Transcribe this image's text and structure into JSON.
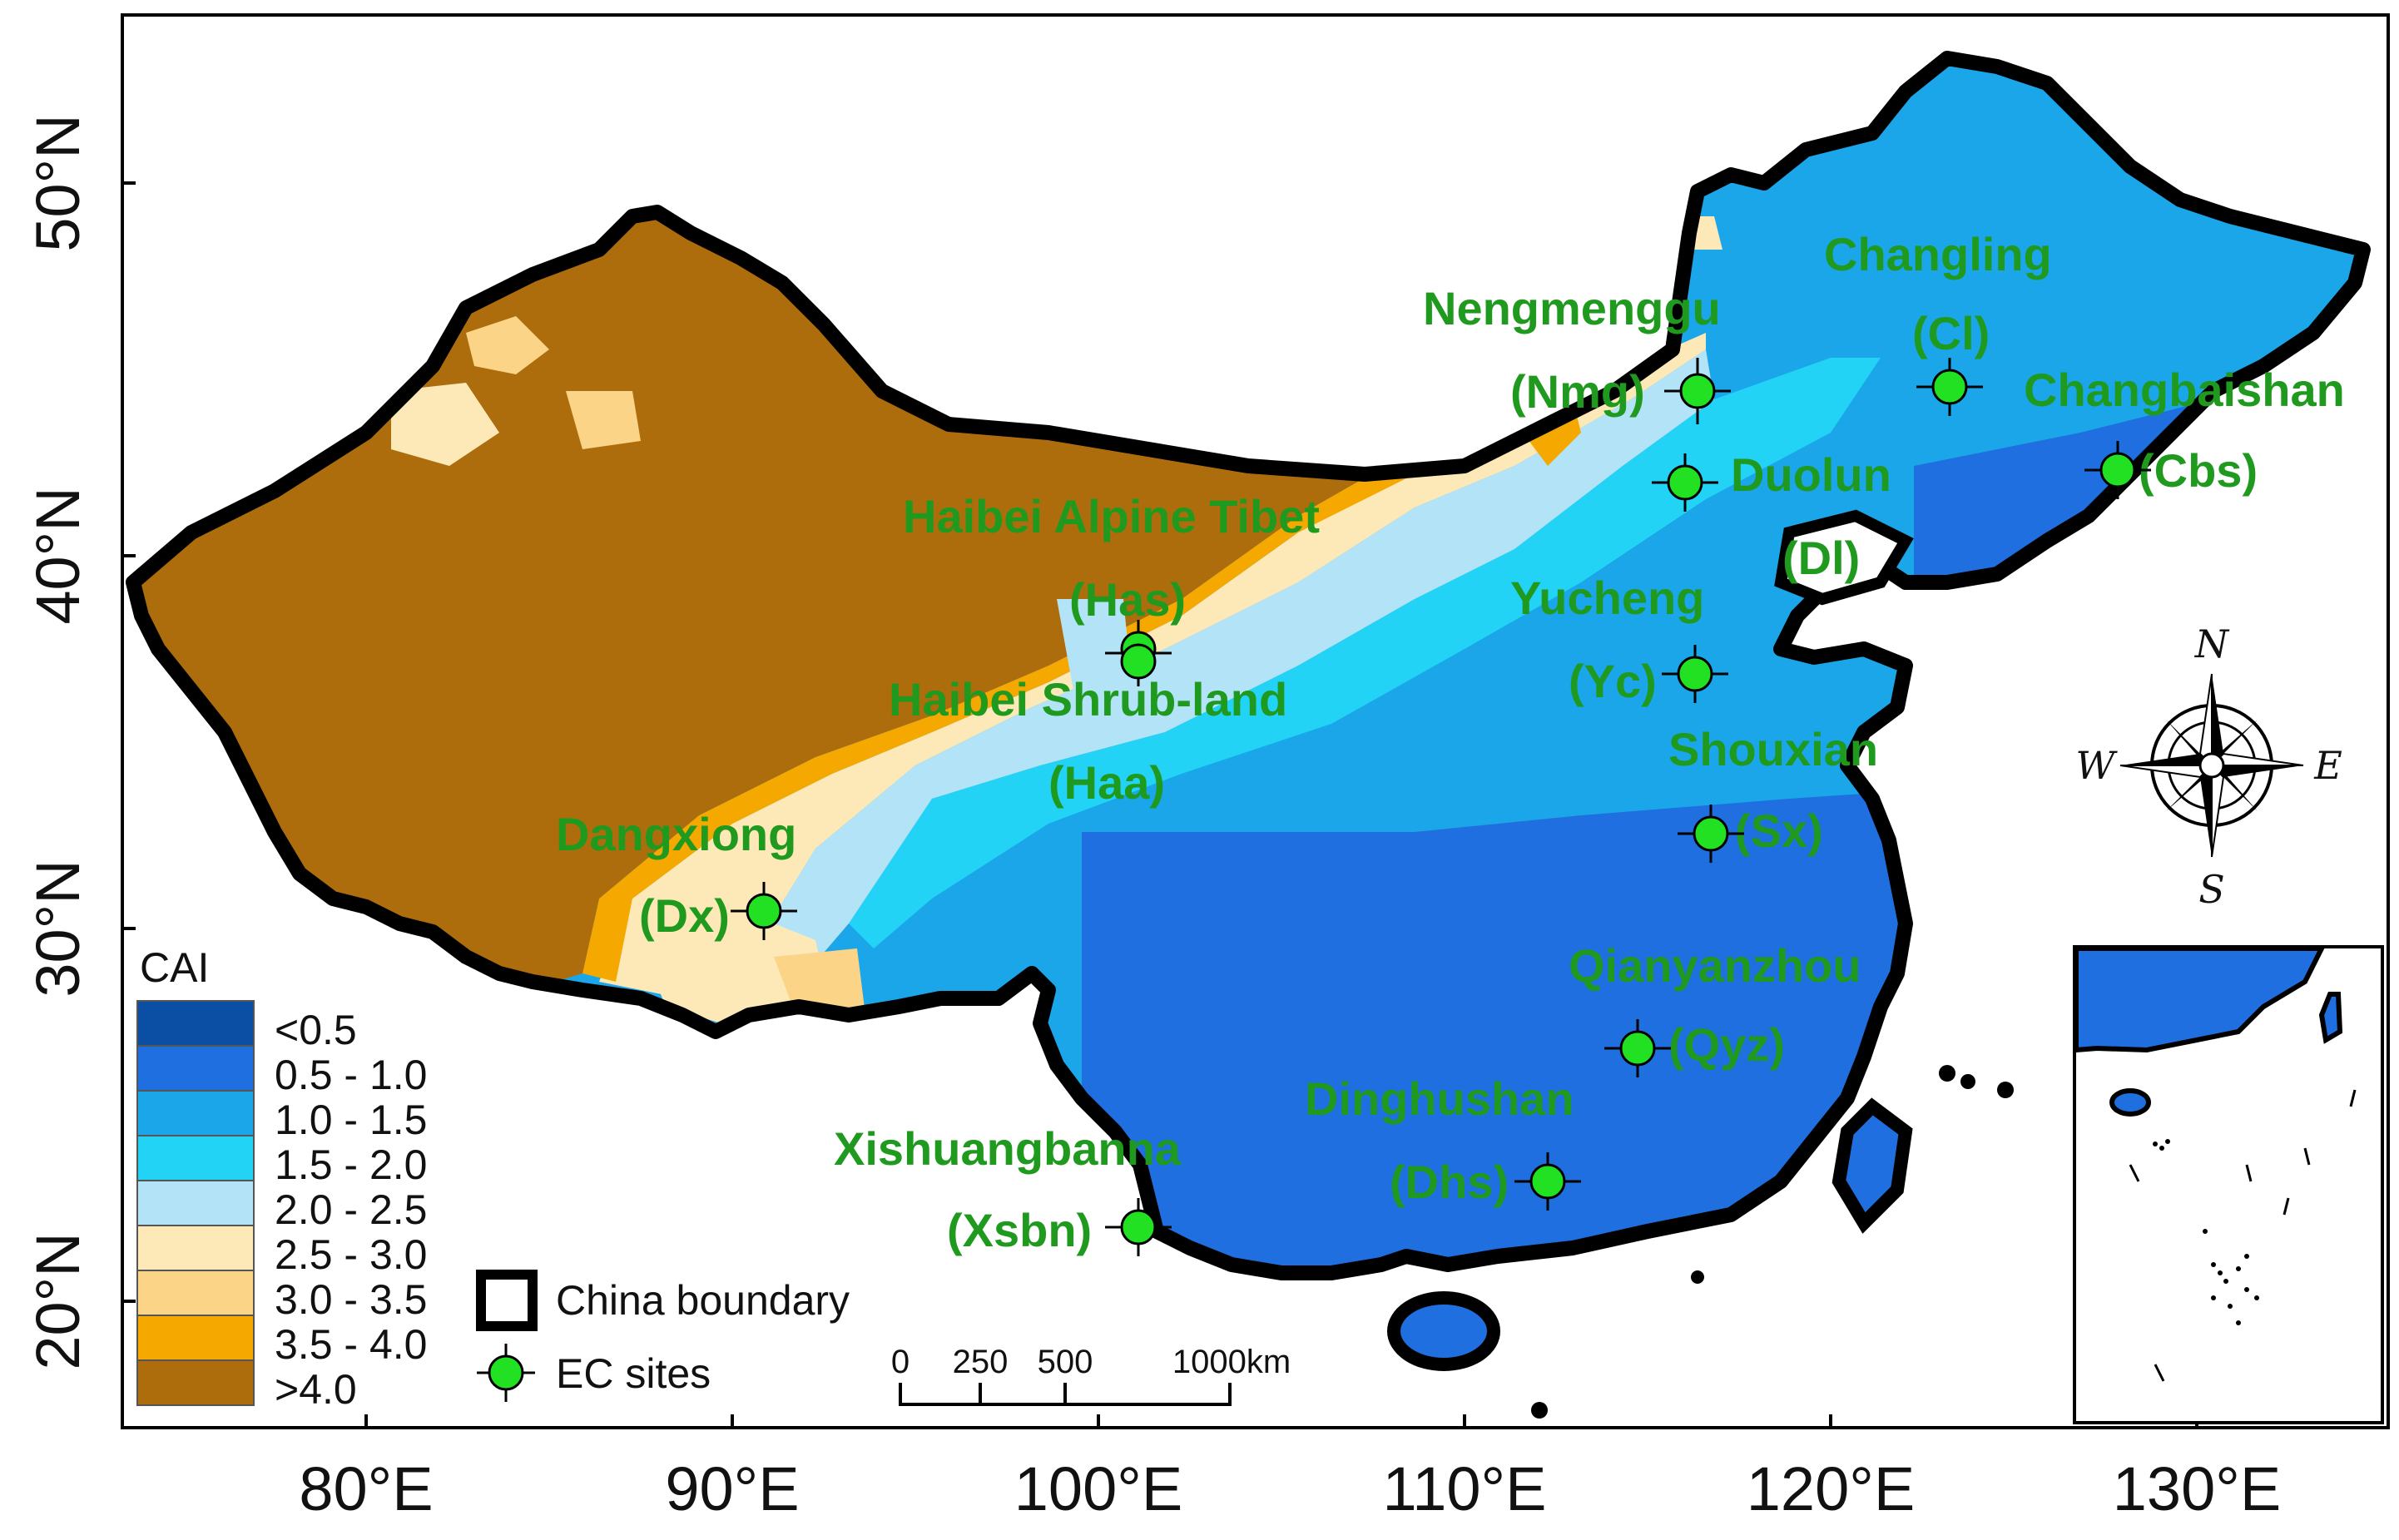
{
  "map": {
    "axes": {
      "x_ticks": [
        "80°E",
        "90°E",
        "100°E",
        "110°E",
        "120°E",
        "130°E"
      ],
      "y_ticks": [
        "50°N",
        "40°N",
        "30°N",
        "20°N"
      ]
    },
    "legend": {
      "title": "CAI",
      "classes": [
        {
          "label": "<0.5",
          "color": "#0a4fa3"
        },
        {
          "label": "0.5 - 1.0",
          "color": "#1f6fe0"
        },
        {
          "label": "1.0 - 1.5",
          "color": "#1aa6e8"
        },
        {
          "label": "1.5 - 2.0",
          "color": "#22d3f5"
        },
        {
          "label": "2.0 - 2.5",
          "color": "#b3e3f7"
        },
        {
          "label": "2.5 - 3.0",
          "color": "#fde9b8"
        },
        {
          "label": "3.0 - 3.5",
          "color": "#fbd487"
        },
        {
          "label": "3.5 - 4.0",
          "color": "#f5a800"
        },
        {
          "label": ">4.0",
          "color": "#ad6d0c"
        }
      ],
      "boundary_label": "China boundary",
      "sites_label": "EC sites"
    },
    "scale_bar": {
      "labels": [
        "0",
        "250",
        "500",
        "1000km"
      ]
    },
    "compass": {
      "n": "N",
      "s": "S",
      "e": "E",
      "w": "W"
    },
    "sites": [
      {
        "name": "Nengmenggu",
        "code": "(Nmg)"
      },
      {
        "name": "Changling",
        "code": "(Cl)"
      },
      {
        "name": "Changbaishan",
        "code": "(Cbs)"
      },
      {
        "name": "Duolun",
        "code": "(Dl)"
      },
      {
        "name": "Haibei Alpine Tibet",
        "code": "(Has)"
      },
      {
        "name": "Yucheng",
        "code": "(Yc)"
      },
      {
        "name": "Haibei Shrub-land",
        "code": "(Haa)"
      },
      {
        "name": "Shouxian",
        "code": "(Sx)"
      },
      {
        "name": "Dangxiong",
        "code": "(Dx)"
      },
      {
        "name": "Qianyanzhou",
        "code": "(Qyz)"
      },
      {
        "name": "Dinghushan",
        "code": "(Dhs)"
      },
      {
        "name": "Xishuangbanna",
        "code": "(Xsbn)"
      }
    ],
    "colors": {
      "site_marker": "#22e022",
      "label": "#1f9a1f",
      "boundary": "#000000"
    }
  }
}
